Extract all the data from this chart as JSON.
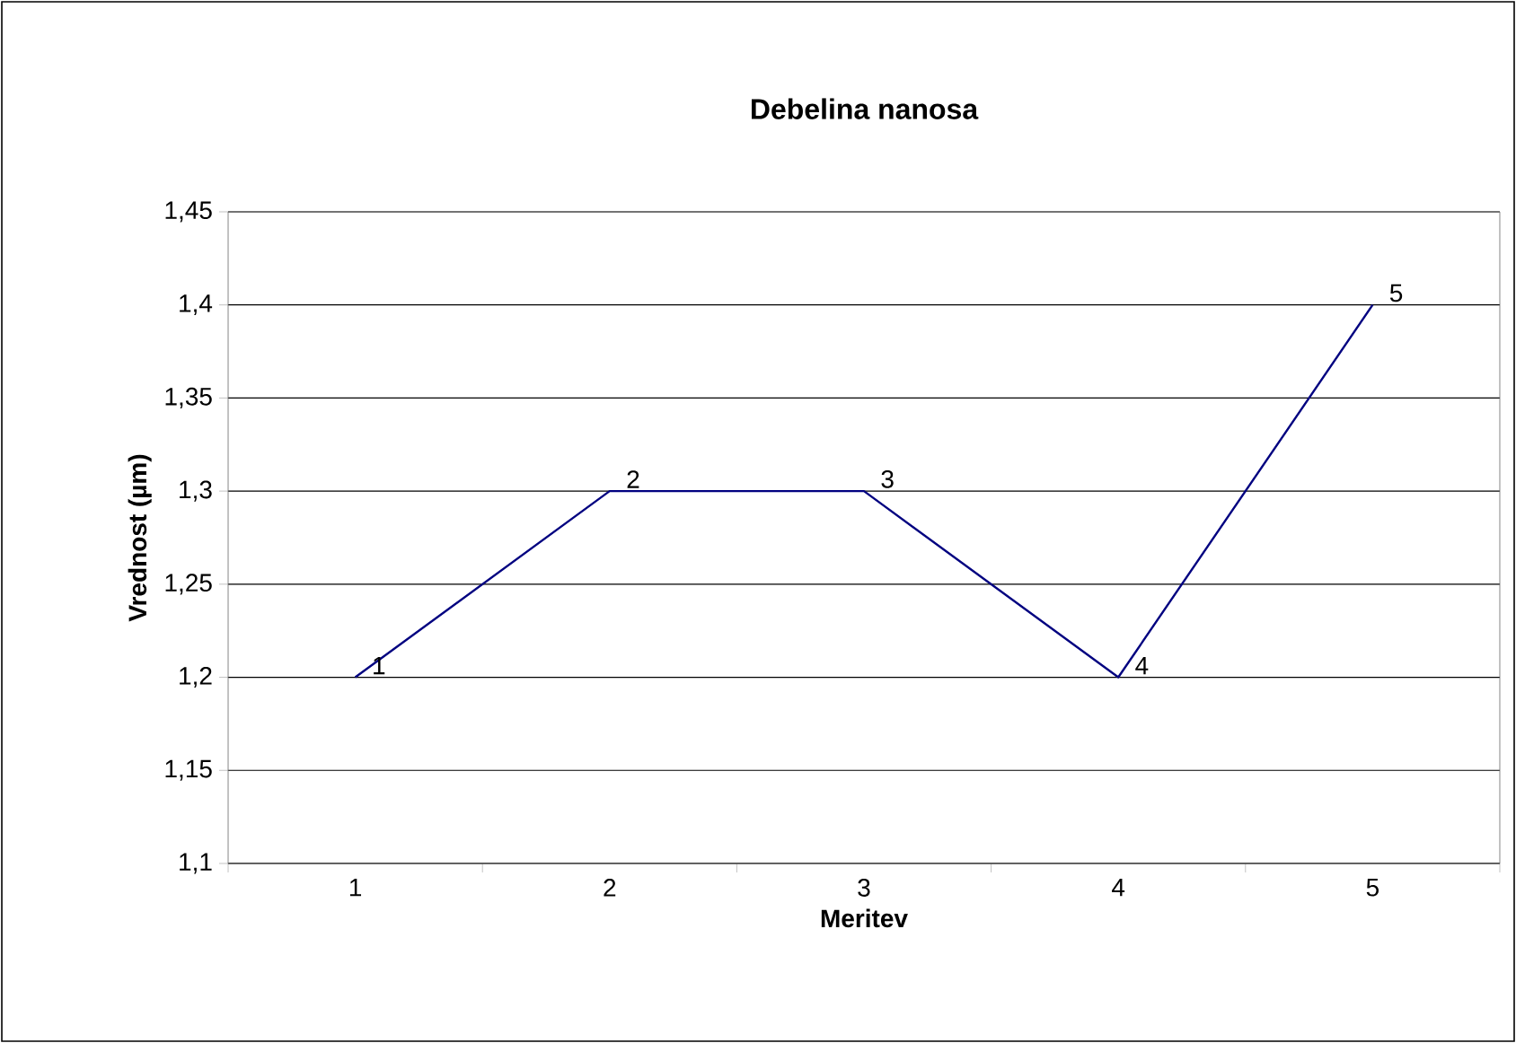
{
  "chart_data": {
    "type": "line",
    "title": "Debelina nanosa",
    "xlabel": "Meritev",
    "ylabel": "Vrednost (µm)",
    "categories": [
      "1",
      "2",
      "3",
      "4",
      "5"
    ],
    "series": [
      {
        "color": "#000080",
        "values": [
          1.2,
          1.3,
          1.3,
          1.2,
          1.4
        ]
      }
    ],
    "ylim": [
      1.1,
      1.45
    ],
    "yticks": [
      {
        "value": 1.1,
        "label": "1,1"
      },
      {
        "value": 1.15,
        "label": "1,15"
      },
      {
        "value": 1.2,
        "label": "1,2"
      },
      {
        "value": 1.25,
        "label": "1,25"
      },
      {
        "value": 1.3,
        "label": "1,3"
      },
      {
        "value": 1.35,
        "label": "1,35"
      },
      {
        "value": 1.4,
        "label": "1,4"
      },
      {
        "value": 1.45,
        "label": "1,45"
      }
    ],
    "grid": "y",
    "marker": "none",
    "line_style": "solid",
    "annotations": [
      {
        "text": "1",
        "x": "1",
        "y": 1.2
      },
      {
        "text": "2",
        "x": "2",
        "y": 1.3
      },
      {
        "text": "3",
        "x": "3",
        "y": 1.3
      },
      {
        "text": "4",
        "x": "4",
        "y": 1.2
      },
      {
        "text": "5",
        "x": "5",
        "y": 1.4
      }
    ]
  }
}
